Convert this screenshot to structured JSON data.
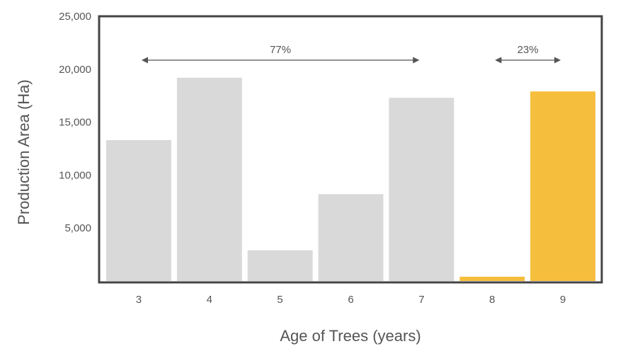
{
  "chart_data": {
    "type": "bar",
    "categories": [
      "3",
      "4",
      "5",
      "6",
      "7",
      "8",
      "9"
    ],
    "values": [
      13300,
      19200,
      2900,
      8200,
      17300,
      400,
      17900
    ],
    "highlight": [
      false,
      false,
      false,
      false,
      false,
      true,
      true
    ],
    "xlabel": "Age of Trees (years)",
    "ylabel": "Production Area (Ha)",
    "ylim": [
      0,
      25000
    ],
    "yticks": [
      {
        "value": 5000,
        "label": "5,000"
      },
      {
        "value": 10000,
        "label": "10,000"
      },
      {
        "value": 15000,
        "label": "15,000"
      },
      {
        "value": 20000,
        "label": "20,000"
      },
      {
        "value": 25000,
        "label": "25,000"
      }
    ],
    "grid": false,
    "annotations": [
      {
        "label": "77%",
        "from_category": "3",
        "to_category": "7"
      },
      {
        "label": "23%",
        "from_category": "8",
        "to_category": "9"
      }
    ],
    "colors": {
      "bar": "#d9d9d9",
      "highlight": "#f5be3c",
      "frame": "#444444",
      "arrow": "#555555",
      "text": "#555555"
    }
  }
}
